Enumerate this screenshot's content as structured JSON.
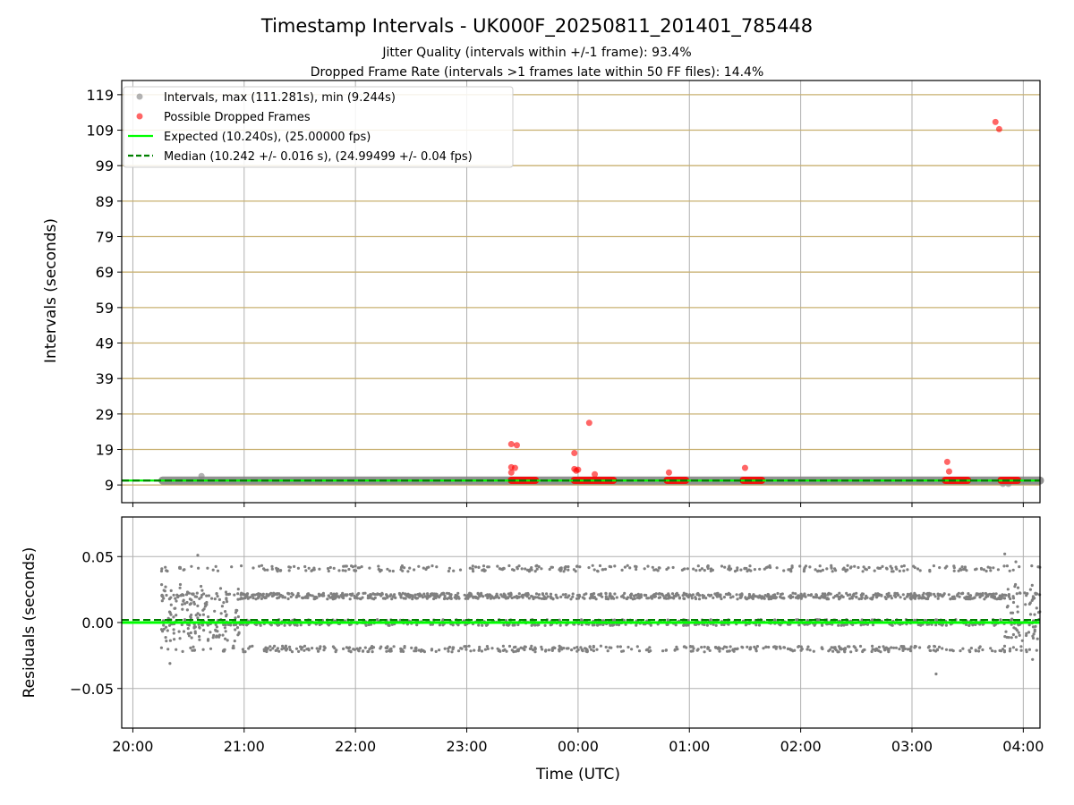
{
  "figure": {
    "title": "Timestamp Intervals - UK000F_20250811_201401_785448",
    "subtitle_1": "Jitter Quality (intervals within +/-1 frame): 93.4%",
    "subtitle_2": "Dropped Frame Rate (intervals >1 frames late within 50 FF files): 14.4%"
  },
  "colors": {
    "intervals": "#808080",
    "dropped": "#ff0000",
    "expected": "#00ff00",
    "median": "#008000",
    "hgrid": "#c8b070",
    "grid": "#b0b0b0"
  },
  "chart_data": [
    {
      "type": "scatter",
      "ylabel": "Intervals (seconds)",
      "xlim": [
        "19:54",
        "04:09"
      ],
      "ylim": [
        4,
        123
      ],
      "x_ticks": [
        "20:00",
        "21:00",
        "22:00",
        "23:00",
        "00:00",
        "01:00",
        "02:00",
        "03:00",
        "04:00"
      ],
      "y_ticks": [
        9,
        19,
        29,
        39,
        49,
        59,
        69,
        79,
        89,
        99,
        109,
        119
      ],
      "legend_position": "upper-left",
      "legend": [
        {
          "label": "Intervals, max (111.281s), min (9.244s)",
          "kind": "dot-gray"
        },
        {
          "label": "Possible Dropped Frames",
          "kind": "dot-red"
        },
        {
          "label": "Expected (10.240s), (25.00000 fps)",
          "kind": "line-green"
        },
        {
          "label": "Median (10.242 +/- 0.016 s), (24.99499 +/- 0.04 fps)",
          "kind": "line-dash"
        }
      ],
      "expected_interval": 10.24,
      "median_interval": 10.242,
      "interval_range": [
        "20:16",
        "04:09"
      ],
      "interval_outliers": [
        {
          "x": "20:37",
          "y": 11.5
        },
        {
          "x": "03:49",
          "y": 9.3
        },
        {
          "x": "03:52",
          "y": 9.3
        }
      ],
      "dropped_clusters": [
        {
          "x_start": "23:24",
          "x_end": "23:37",
          "y": 10.3
        },
        {
          "x_start": "23:58",
          "x_end": "00:19",
          "y": 10.3
        },
        {
          "x_start": "00:48",
          "x_end": "00:58",
          "y": 10.3
        },
        {
          "x_start": "01:29",
          "x_end": "01:39",
          "y": 10.3
        },
        {
          "x_start": "03:18",
          "x_end": "03:30",
          "y": 10.3
        },
        {
          "x_start": "03:48",
          "x_end": "03:57",
          "y": 10.3
        }
      ],
      "dropped_points": [
        {
          "x": "23:24",
          "y": 20.5
        },
        {
          "x": "23:27",
          "y": 20.2
        },
        {
          "x": "23:24",
          "y": 14.0
        },
        {
          "x": "23:26",
          "y": 13.8
        },
        {
          "x": "23:24",
          "y": 12.5
        },
        {
          "x": "23:58",
          "y": 18.0
        },
        {
          "x": "23:58",
          "y": 13.5
        },
        {
          "x": "23:59",
          "y": 13.0
        },
        {
          "x": "00:00",
          "y": 13.3
        },
        {
          "x": "00:06",
          "y": 26.5
        },
        {
          "x": "00:09",
          "y": 12.0
        },
        {
          "x": "00:49",
          "y": 12.5
        },
        {
          "x": "01:30",
          "y": 13.8
        },
        {
          "x": "03:19",
          "y": 15.5
        },
        {
          "x": "03:20",
          "y": 12.8
        },
        {
          "x": "03:45",
          "y": 111.3
        },
        {
          "x": "03:47",
          "y": 109.3
        }
      ]
    },
    {
      "type": "scatter",
      "xlabel": "Time (UTC)",
      "ylabel": "Residuals (seconds)",
      "xlim": [
        "19:54",
        "04:09"
      ],
      "ylim": [
        -0.08,
        0.08
      ],
      "x_ticks": [
        "20:00",
        "21:00",
        "22:00",
        "23:00",
        "00:00",
        "01:00",
        "02:00",
        "03:00",
        "04:00"
      ],
      "y_ticks": [
        {
          "value": 0.05,
          "label": "0.05"
        },
        {
          "value": 0.0,
          "label": "0.00"
        },
        {
          "value": -0.05,
          "label": "−0.05"
        }
      ],
      "expected_residual": 0.0,
      "median_residual": 0.002,
      "residual_bands": [
        0.041,
        0.02,
        0.0,
        -0.02
      ],
      "residual_range": [
        "20:15",
        "04:09"
      ],
      "residual_outliers": [
        {
          "x": "20:20",
          "y": -0.031
        },
        {
          "x": "20:35",
          "y": 0.051
        },
        {
          "x": "03:13",
          "y": -0.039
        },
        {
          "x": "03:50",
          "y": 0.052
        },
        {
          "x": "03:56",
          "y": 0.046
        },
        {
          "x": "04:05",
          "y": -0.028
        }
      ]
    }
  ]
}
